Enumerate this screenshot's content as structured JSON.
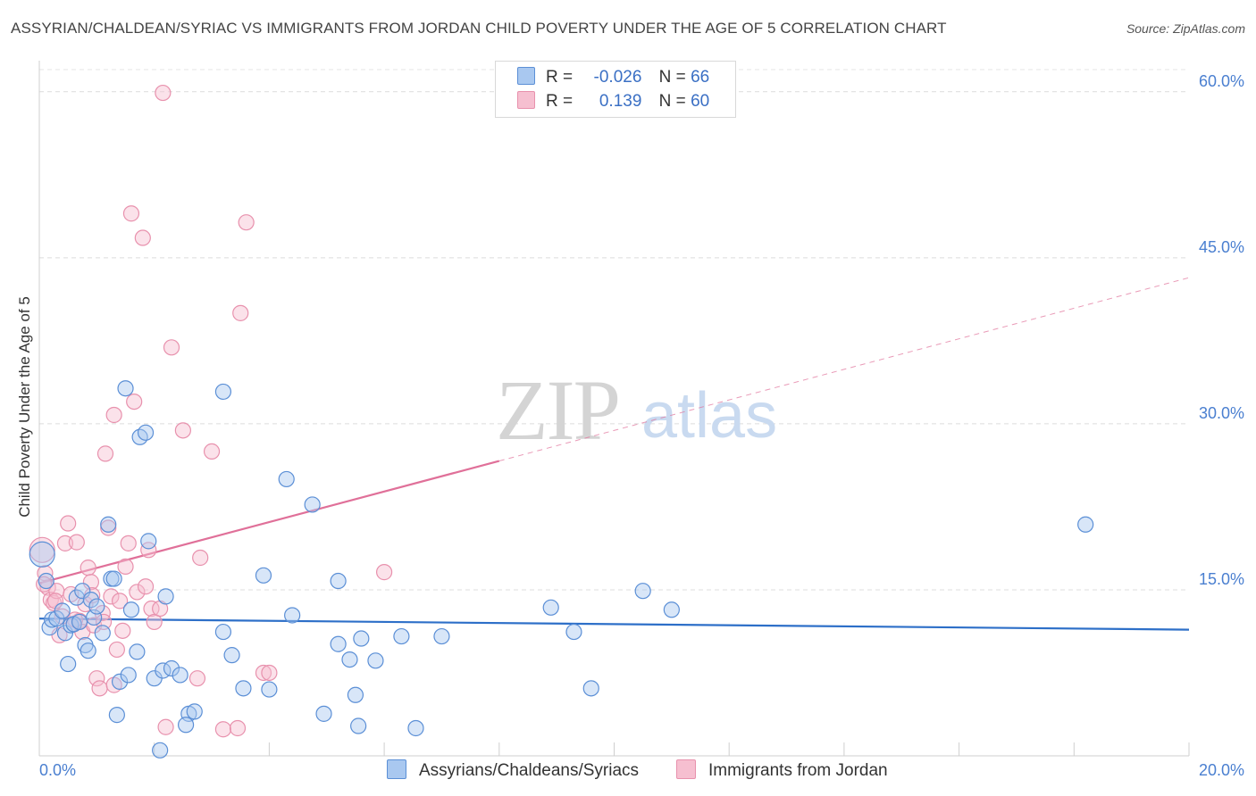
{
  "title": "ASSYRIAN/CHALDEAN/SYRIAC VS IMMIGRANTS FROM JORDAN CHILD POVERTY UNDER THE AGE OF 5 CORRELATION CHART",
  "source": "Source: ZipAtlas.com",
  "legend_top": {
    "series1": {
      "r_label": "R =",
      "r_value": "-0.026",
      "n_label": "N =",
      "n_value": "66"
    },
    "series2": {
      "r_label": "R =",
      "r_value": "0.139",
      "n_label": "N =",
      "n_value": "60"
    }
  },
  "colors": {
    "blue_fill": "#a9c8f0",
    "blue_stroke": "#5b8fd6",
    "blue_line": "#2d6fc8",
    "pink_fill": "#f6bfd0",
    "pink_stroke": "#e891ad",
    "pink_line": "#e07099",
    "tick": "#4a7fd0"
  },
  "watermark": {
    "zip": "ZIP",
    "atlas": "atlas"
  },
  "chart_data": {
    "type": "scatter",
    "title": "ASSYRIAN/CHALDEAN/SYRIAC VS IMMIGRANTS FROM JORDAN CHILD POVERTY UNDER THE AGE OF 5 CORRELATION CHART",
    "xlabel": "",
    "ylabel": "Child Poverty Under the Age of 5",
    "xlim": [
      0,
      20
    ],
    "ylim": [
      0,
      62
    ],
    "x_ticks": [
      {
        "v": 0,
        "label": "0.0%"
      },
      {
        "v": 20,
        "label": "20.0%"
      }
    ],
    "y_ticks": [
      {
        "v": 15,
        "label": "15.0%"
      },
      {
        "v": 30,
        "label": "30.0%"
      },
      {
        "v": 45,
        "label": "45.0%"
      },
      {
        "v": 60,
        "label": "60.0%"
      }
    ],
    "legend_position": "bottom",
    "series": [
      {
        "name": "Assyrians/Chaldeans/Syriacs",
        "color": "blue",
        "trend": {
          "x0": 0,
          "y0": 12.4,
          "x1": 20,
          "y1": 11.4
        },
        "points": [
          [
            0.05,
            18.2
          ],
          [
            0.12,
            15.8
          ],
          [
            0.18,
            11.6
          ],
          [
            0.22,
            12.3
          ],
          [
            0.3,
            12.4
          ],
          [
            0.4,
            13.1
          ],
          [
            0.45,
            11.1
          ],
          [
            0.5,
            8.3
          ],
          [
            0.55,
            11.8
          ],
          [
            0.6,
            11.9
          ],
          [
            0.65,
            14.3
          ],
          [
            0.7,
            12.1
          ],
          [
            0.75,
            14.9
          ],
          [
            0.8,
            10.0
          ],
          [
            0.85,
            9.5
          ],
          [
            0.9,
            14.1
          ],
          [
            0.95,
            12.5
          ],
          [
            1.0,
            13.5
          ],
          [
            1.1,
            11.1
          ],
          [
            1.2,
            20.9
          ],
          [
            1.25,
            16.0
          ],
          [
            1.3,
            16.0
          ],
          [
            1.35,
            3.7
          ],
          [
            1.4,
            6.7
          ],
          [
            1.5,
            33.2
          ],
          [
            1.55,
            7.3
          ],
          [
            1.6,
            13.2
          ],
          [
            1.7,
            9.4
          ],
          [
            1.75,
            28.8
          ],
          [
            1.85,
            29.2
          ],
          [
            1.9,
            19.4
          ],
          [
            2.0,
            7.0
          ],
          [
            2.1,
            0.5
          ],
          [
            2.15,
            7.7
          ],
          [
            2.2,
            14.4
          ],
          [
            2.3,
            7.9
          ],
          [
            2.45,
            7.3
          ],
          [
            2.6,
            3.8
          ],
          [
            2.7,
            4.0
          ],
          [
            2.55,
            2.8
          ],
          [
            3.2,
            32.9
          ],
          [
            3.2,
            11.2
          ],
          [
            3.35,
            9.1
          ],
          [
            3.55,
            6.1
          ],
          [
            3.9,
            16.3
          ],
          [
            4.0,
            6.0
          ],
          [
            4.3,
            25.0
          ],
          [
            4.4,
            12.7
          ],
          [
            4.75,
            22.7
          ],
          [
            4.95,
            3.8
          ],
          [
            5.2,
            15.8
          ],
          [
            5.2,
            10.1
          ],
          [
            5.4,
            8.7
          ],
          [
            5.5,
            5.5
          ],
          [
            5.6,
            10.6
          ],
          [
            5.55,
            2.7
          ],
          [
            5.85,
            8.6
          ],
          [
            6.3,
            10.8
          ],
          [
            6.55,
            2.5
          ],
          [
            7.0,
            10.8
          ],
          [
            8.9,
            13.4
          ],
          [
            9.3,
            11.2
          ],
          [
            9.6,
            6.1
          ],
          [
            10.5,
            14.9
          ],
          [
            11.0,
            13.2
          ],
          [
            18.2,
            20.9
          ]
        ]
      },
      {
        "name": "Immigrants from Jordan",
        "color": "pink",
        "trend": {
          "x0": 0,
          "y0": 15.6,
          "x1": 20,
          "y1": 43.2,
          "solid_until": 8.0
        },
        "points": [
          [
            0.05,
            18.6
          ],
          [
            0.1,
            16.5
          ],
          [
            0.15,
            15.2
          ],
          [
            0.2,
            14.1
          ],
          [
            0.25,
            13.8
          ],
          [
            0.3,
            14.9
          ],
          [
            0.35,
            10.9
          ],
          [
            0.4,
            12.6
          ],
          [
            0.45,
            19.2
          ],
          [
            0.5,
            21.0
          ],
          [
            0.55,
            14.6
          ],
          [
            0.6,
            11.9
          ],
          [
            0.65,
            19.3
          ],
          [
            0.7,
            12.2
          ],
          [
            0.75,
            11.2
          ],
          [
            0.8,
            13.7
          ],
          [
            0.85,
            17.0
          ],
          [
            0.9,
            15.7
          ],
          [
            0.95,
            11.8
          ],
          [
            1.0,
            7.0
          ],
          [
            1.05,
            6.1
          ],
          [
            1.1,
            12.9
          ],
          [
            1.15,
            27.3
          ],
          [
            1.2,
            20.6
          ],
          [
            1.25,
            14.4
          ],
          [
            1.3,
            6.4
          ],
          [
            1.3,
            30.8
          ],
          [
            1.35,
            9.6
          ],
          [
            1.4,
            14.0
          ],
          [
            1.45,
            11.3
          ],
          [
            1.5,
            17.1
          ],
          [
            1.55,
            19.2
          ],
          [
            1.6,
            49.0
          ],
          [
            1.65,
            32.0
          ],
          [
            1.7,
            14.8
          ],
          [
            1.8,
            46.8
          ],
          [
            1.85,
            15.3
          ],
          [
            1.9,
            18.6
          ],
          [
            1.95,
            13.3
          ],
          [
            2.0,
            12.1
          ],
          [
            2.1,
            13.3
          ],
          [
            2.15,
            59.9
          ],
          [
            2.2,
            2.6
          ],
          [
            2.3,
            36.9
          ],
          [
            2.5,
            29.4
          ],
          [
            2.75,
            7.0
          ],
          [
            2.8,
            17.9
          ],
          [
            3.0,
            27.5
          ],
          [
            3.2,
            2.4
          ],
          [
            3.45,
            2.5
          ],
          [
            3.5,
            40.0
          ],
          [
            3.6,
            48.2
          ],
          [
            3.9,
            7.5
          ],
          [
            4.0,
            7.5
          ],
          [
            6.0,
            16.6
          ],
          [
            0.08,
            15.5
          ],
          [
            0.28,
            14.0
          ],
          [
            0.62,
            12.3
          ],
          [
            0.92,
            14.5
          ],
          [
            1.12,
            12.1
          ]
        ]
      }
    ]
  },
  "bottom_legend": {
    "item1": "Assyrians/Chaldeans/Syriacs",
    "item2": "Immigrants from Jordan"
  }
}
